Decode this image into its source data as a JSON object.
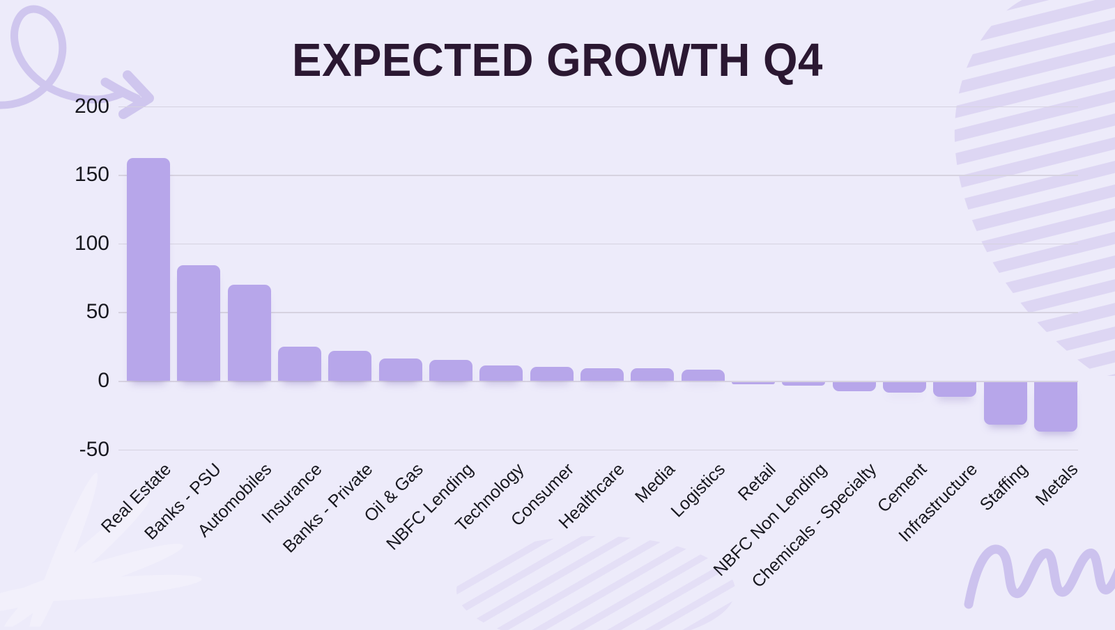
{
  "page": {
    "background_color": "#edebfa"
  },
  "chart_data": {
    "type": "bar",
    "title": "EXPECTED GROWTH Q4",
    "categories": [
      "Real Estate",
      "Banks - PSU",
      "Automobiles",
      "Insurance",
      "Banks - Private",
      "Oil & Gas",
      "NBFC Lending",
      "Technology",
      "Consumer",
      "Healthcare",
      "Media",
      "Logistics",
      "Retail",
      "NBFC Non Lending",
      "Chemicals - Specialty",
      "Cement",
      "Infrastructure",
      "Staffing",
      "Metals"
    ],
    "values": [
      162,
      84,
      70,
      25,
      22,
      16,
      15,
      11,
      10,
      9,
      9,
      8,
      -2,
      -3,
      -7,
      -8,
      -11,
      -31,
      -36
    ],
    "xlabel": "",
    "ylabel": "",
    "y_ticks": [
      200,
      150,
      100,
      50,
      0,
      -50
    ],
    "ylim": [
      -50,
      200
    ],
    "grid": true,
    "legend_position": "none",
    "bar_color": "#b7a6ea",
    "gridline_color": "#d6d2e0",
    "title_color": "#2b1832",
    "axis_text_color": "#18181f"
  },
  "decorations": {
    "top_left": "loop-arrow-doodle",
    "top_right": "curved-stripe-band",
    "bottom_center": "faint-fan-stripes",
    "bottom_right": "squiggle-wave",
    "bottom_left": "faint-leaf-frond",
    "decoration_color": "#cfc6ee",
    "stripe_color": "#ddd6f3"
  }
}
